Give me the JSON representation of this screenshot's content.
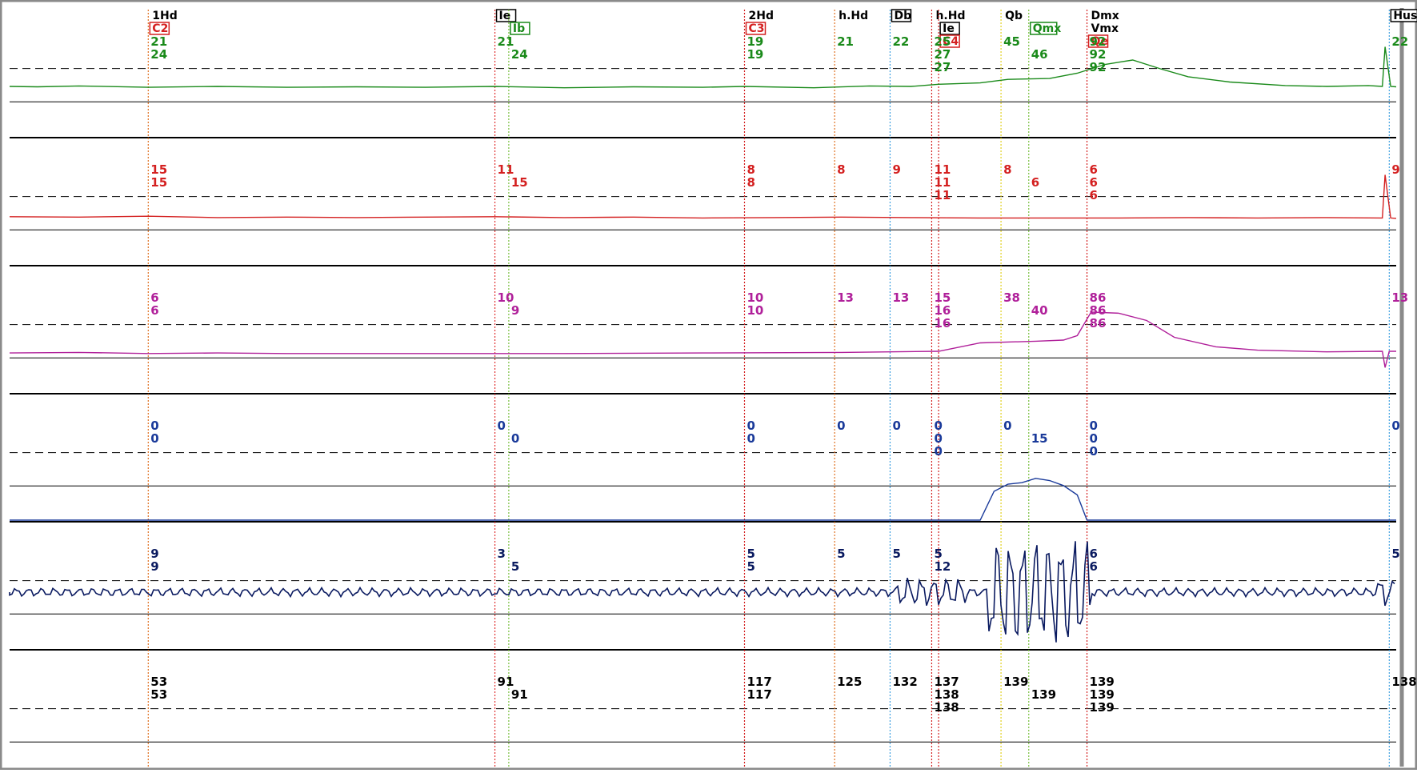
{
  "chart_data": {
    "type": "line",
    "title": "",
    "colors": {
      "ch0": "#1a8a1a",
      "ch1": "#d42020",
      "ch2": "#b0209a",
      "ch3": "#1a3a9a",
      "ch4": "#0a1a60",
      "ch5": "#000000",
      "frame": "#8a8a8a"
    },
    "events": [
      {
        "key": "e1",
        "t": 0.1,
        "labels": [
          {
            "text": "1Hd",
            "color": "#000000",
            "box": false
          },
          {
            "text": "C2",
            "color": "#d42020",
            "box": true
          }
        ],
        "color": "#e07020"
      },
      {
        "key": "e2",
        "t": 0.35,
        "labels": [
          {
            "text": "Ie",
            "color": "#000000",
            "box": true
          }
        ],
        "color": "#e03030"
      },
      {
        "key": "e2b",
        "t": 0.36,
        "labels": [
          {
            "text": "",
            "color": "#000000",
            "box": false
          },
          {
            "text": "Ib",
            "color": "#1a8a1a",
            "box": true
          }
        ],
        "color": "#7ac040"
      },
      {
        "key": "e3",
        "t": 0.53,
        "labels": [
          {
            "text": "2Hd",
            "color": "#000000",
            "box": false
          },
          {
            "text": "C3",
            "color": "#d42020",
            "box": true
          }
        ],
        "color": "#d42020"
      },
      {
        "key": "e4",
        "t": 0.595,
        "labels": [
          {
            "text": "h.Hd",
            "color": "#000000",
            "box": false
          }
        ],
        "color": "#e07020"
      },
      {
        "key": "e5",
        "t": 0.635,
        "labels": [
          {
            "text": "Db",
            "color": "#000000",
            "box": true
          }
        ],
        "color": "#40a0e0"
      },
      {
        "key": "e6",
        "t": 0.665,
        "labels": [
          {
            "text": "h.Hd",
            "color": "#000000",
            "box": false
          }
        ],
        "color": "#d42020"
      },
      {
        "key": "e6b",
        "t": 0.67,
        "labels": [
          {
            "text": "",
            "color": "#000000",
            "box": false
          },
          {
            "text": "Ie",
            "color": "#000000",
            "box": true
          },
          {
            "text": "C4",
            "color": "#d42020",
            "box": true
          }
        ],
        "color": "#d42020"
      },
      {
        "key": "e7",
        "t": 0.715,
        "labels": [
          {
            "text": "Qb",
            "color": "#000000",
            "box": false
          }
        ],
        "color": "#e0d020"
      },
      {
        "key": "e8",
        "t": 0.735,
        "labels": [
          {
            "text": "",
            "color": "#000000",
            "box": false
          },
          {
            "text": "Qmx",
            "color": "#1a8a1a",
            "box": true
          }
        ],
        "color": "#7ac040"
      },
      {
        "key": "e9",
        "t": 0.777,
        "labels": [
          {
            "text": "Dmx",
            "color": "#000000",
            "box": false
          },
          {
            "text": "Vmx",
            "color": "#000000",
            "box": false
          },
          {
            "text": "Qe",
            "color": "#d42020",
            "box": true
          }
        ],
        "color": "#d42020"
      },
      {
        "key": "e10",
        "t": 0.995,
        "labels": [
          {
            "text": "Hus",
            "color": "#000000",
            "box": true
          }
        ],
        "color": "#40a0e0"
      }
    ],
    "channels": [
      {
        "key": "ch0",
        "color": "#1a8a1a",
        "annotations": [
          {
            "t": 0.1,
            "vals": [
              "21",
              "24"
            ]
          },
          {
            "t": 0.35,
            "vals": [
              "21"
            ]
          },
          {
            "t": 0.36,
            "vals": [
              "",
              "24"
            ]
          },
          {
            "t": 0.53,
            "vals": [
              "19",
              "19"
            ]
          },
          {
            "t": 0.595,
            "vals": [
              "21"
            ]
          },
          {
            "t": 0.635,
            "vals": [
              "22"
            ]
          },
          {
            "t": 0.665,
            "vals": [
              "25",
              "27",
              "27"
            ]
          },
          {
            "t": 0.715,
            "vals": [
              "45"
            ]
          },
          {
            "t": 0.735,
            "vals": [
              "",
              "46"
            ]
          },
          {
            "t": 0.777,
            "vals": [
              "92",
              "92",
              "92"
            ]
          },
          {
            "t": 0.995,
            "vals": [
              "22"
            ]
          }
        ],
        "trace": [
          [
            0,
            0.6
          ],
          [
            0.02,
            0.61
          ],
          [
            0.05,
            0.59
          ],
          [
            0.1,
            0.62
          ],
          [
            0.15,
            0.6
          ],
          [
            0.2,
            0.62
          ],
          [
            0.25,
            0.61
          ],
          [
            0.3,
            0.62
          ],
          [
            0.35,
            0.6
          ],
          [
            0.4,
            0.63
          ],
          [
            0.45,
            0.61
          ],
          [
            0.5,
            0.62
          ],
          [
            0.53,
            0.6
          ],
          [
            0.58,
            0.63
          ],
          [
            0.62,
            0.59
          ],
          [
            0.65,
            0.6
          ],
          [
            0.67,
            0.55
          ],
          [
            0.7,
            0.52
          ],
          [
            0.72,
            0.44
          ],
          [
            0.75,
            0.42
          ],
          [
            0.77,
            0.3
          ],
          [
            0.79,
            0.1
          ],
          [
            0.81,
            0.0
          ],
          [
            0.83,
            0.2
          ],
          [
            0.85,
            0.38
          ],
          [
            0.88,
            0.5
          ],
          [
            0.92,
            0.58
          ],
          [
            0.95,
            0.6
          ],
          [
            0.98,
            0.58
          ],
          [
            0.99,
            0.6
          ],
          [
            0.992,
            -0.3
          ],
          [
            0.996,
            0.6
          ],
          [
            1,
            0.61
          ]
        ]
      },
      {
        "key": "ch1",
        "color": "#d42020",
        "annotations": [
          {
            "t": 0.1,
            "vals": [
              "15",
              "15"
            ]
          },
          {
            "t": 0.35,
            "vals": [
              "11"
            ]
          },
          {
            "t": 0.36,
            "vals": [
              "",
              "15"
            ]
          },
          {
            "t": 0.53,
            "vals": [
              "8",
              "8"
            ]
          },
          {
            "t": 0.595,
            "vals": [
              "8"
            ]
          },
          {
            "t": 0.635,
            "vals": [
              "9"
            ]
          },
          {
            "t": 0.665,
            "vals": [
              "11",
              "11",
              "11"
            ]
          },
          {
            "t": 0.715,
            "vals": [
              "8"
            ]
          },
          {
            "t": 0.735,
            "vals": [
              "",
              "6"
            ]
          },
          {
            "t": 0.777,
            "vals": [
              "6",
              "6",
              "6"
            ]
          },
          {
            "t": 0.995,
            "vals": [
              "9"
            ]
          }
        ],
        "trace": [
          [
            0,
            0.65
          ],
          [
            0.05,
            0.66
          ],
          [
            0.1,
            0.64
          ],
          [
            0.15,
            0.67
          ],
          [
            0.2,
            0.66
          ],
          [
            0.25,
            0.67
          ],
          [
            0.3,
            0.66
          ],
          [
            0.35,
            0.65
          ],
          [
            0.4,
            0.67
          ],
          [
            0.45,
            0.66
          ],
          [
            0.5,
            0.68
          ],
          [
            0.55,
            0.67
          ],
          [
            0.6,
            0.66
          ],
          [
            0.65,
            0.67
          ],
          [
            0.7,
            0.68
          ],
          [
            0.75,
            0.68
          ],
          [
            0.8,
            0.68
          ],
          [
            0.85,
            0.67
          ],
          [
            0.9,
            0.68
          ],
          [
            0.95,
            0.67
          ],
          [
            0.99,
            0.68
          ],
          [
            0.992,
            -0.3
          ],
          [
            0.996,
            0.68
          ],
          [
            1,
            0.69
          ]
        ]
      },
      {
        "key": "ch2",
        "color": "#b0209a",
        "annotations": [
          {
            "t": 0.1,
            "vals": [
              "6",
              "6"
            ]
          },
          {
            "t": 0.35,
            "vals": [
              "10"
            ]
          },
          {
            "t": 0.36,
            "vals": [
              "",
              "9"
            ]
          },
          {
            "t": 0.53,
            "vals": [
              "10",
              "10"
            ]
          },
          {
            "t": 0.595,
            "vals": [
              "13"
            ]
          },
          {
            "t": 0.635,
            "vals": [
              "13"
            ]
          },
          {
            "t": 0.665,
            "vals": [
              "15",
              "16",
              "16"
            ]
          },
          {
            "t": 0.715,
            "vals": [
              "38"
            ]
          },
          {
            "t": 0.735,
            "vals": [
              "",
              "40"
            ]
          },
          {
            "t": 0.777,
            "vals": [
              "86",
              "86",
              "86"
            ]
          },
          {
            "t": 0.995,
            "vals": [
              "13"
            ]
          }
        ],
        "trace": [
          [
            0,
            0.73
          ],
          [
            0.05,
            0.72
          ],
          [
            0.1,
            0.74
          ],
          [
            0.15,
            0.73
          ],
          [
            0.2,
            0.74
          ],
          [
            0.3,
            0.74
          ],
          [
            0.4,
            0.74
          ],
          [
            0.5,
            0.73
          ],
          [
            0.6,
            0.72
          ],
          [
            0.67,
            0.7
          ],
          [
            0.7,
            0.55
          ],
          [
            0.74,
            0.52
          ],
          [
            0.76,
            0.5
          ],
          [
            0.77,
            0.42
          ],
          [
            0.78,
            0.0
          ],
          [
            0.8,
            0.02
          ],
          [
            0.82,
            0.15
          ],
          [
            0.84,
            0.45
          ],
          [
            0.87,
            0.62
          ],
          [
            0.9,
            0.68
          ],
          [
            0.95,
            0.71
          ],
          [
            0.99,
            0.7
          ],
          [
            0.992,
            0.99
          ],
          [
            0.995,
            0.7
          ],
          [
            1,
            0.7
          ]
        ]
      },
      {
        "key": "ch3",
        "color": "#1a3a9a",
        "annotations": [
          {
            "t": 0.1,
            "vals": [
              "0",
              "0"
            ]
          },
          {
            "t": 0.35,
            "vals": [
              "0"
            ]
          },
          {
            "t": 0.36,
            "vals": [
              "",
              "0"
            ]
          },
          {
            "t": 0.53,
            "vals": [
              "0",
              "0"
            ]
          },
          {
            "t": 0.595,
            "vals": [
              "0"
            ]
          },
          {
            "t": 0.635,
            "vals": [
              "0"
            ]
          },
          {
            "t": 0.665,
            "vals": [
              "0",
              "0",
              "0"
            ]
          },
          {
            "t": 0.715,
            "vals": [
              "0"
            ]
          },
          {
            "t": 0.735,
            "vals": [
              "",
              "15"
            ]
          },
          {
            "t": 0.777,
            "vals": [
              "0",
              "0",
              "0"
            ]
          },
          {
            "t": 0.995,
            "vals": [
              "0"
            ]
          }
        ],
        "trace": [
          [
            0,
            1
          ],
          [
            0.7,
            1
          ],
          [
            0.71,
            0.6
          ],
          [
            0.72,
            0.5
          ],
          [
            0.73,
            0.48
          ],
          [
            0.74,
            0.42
          ],
          [
            0.75,
            0.45
          ],
          [
            0.76,
            0.52
          ],
          [
            0.77,
            0.65
          ],
          [
            0.777,
            1
          ],
          [
            1,
            1
          ]
        ]
      },
      {
        "key": "ch4",
        "color": "#0a1a60",
        "annotations": [
          {
            "t": 0.1,
            "vals": [
              "9",
              "9"
            ]
          },
          {
            "t": 0.35,
            "vals": [
              "3"
            ]
          },
          {
            "t": 0.36,
            "vals": [
              "",
              "5"
            ]
          },
          {
            "t": 0.53,
            "vals": [
              "5",
              "5"
            ]
          },
          {
            "t": 0.595,
            "vals": [
              "5"
            ]
          },
          {
            "t": 0.635,
            "vals": [
              "5"
            ]
          },
          {
            "t": 0.665,
            "vals": [
              "5",
              "12"
            ]
          },
          {
            "t": 0.777,
            "vals": [
              "6",
              "6"
            ]
          },
          {
            "t": 0.995,
            "vals": [
              "5"
            ]
          }
        ],
        "trace": []
      },
      {
        "key": "ch5",
        "color": "#000000",
        "annotations": [
          {
            "t": 0.1,
            "vals": [
              "53",
              "53"
            ]
          },
          {
            "t": 0.35,
            "vals": [
              "91"
            ]
          },
          {
            "t": 0.36,
            "vals": [
              "",
              "91"
            ]
          },
          {
            "t": 0.53,
            "vals": [
              "117",
              "117"
            ]
          },
          {
            "t": 0.595,
            "vals": [
              "125"
            ]
          },
          {
            "t": 0.635,
            "vals": [
              "132"
            ]
          },
          {
            "t": 0.665,
            "vals": [
              "137",
              "138",
              "138"
            ]
          },
          {
            "t": 0.715,
            "vals": [
              "139"
            ]
          },
          {
            "t": 0.735,
            "vals": [
              "",
              "139"
            ]
          },
          {
            "t": 0.777,
            "vals": [
              "139",
              "139",
              "139"
            ]
          },
          {
            "t": 0.995,
            "vals": [
              "138"
            ]
          }
        ],
        "trace": []
      }
    ]
  }
}
